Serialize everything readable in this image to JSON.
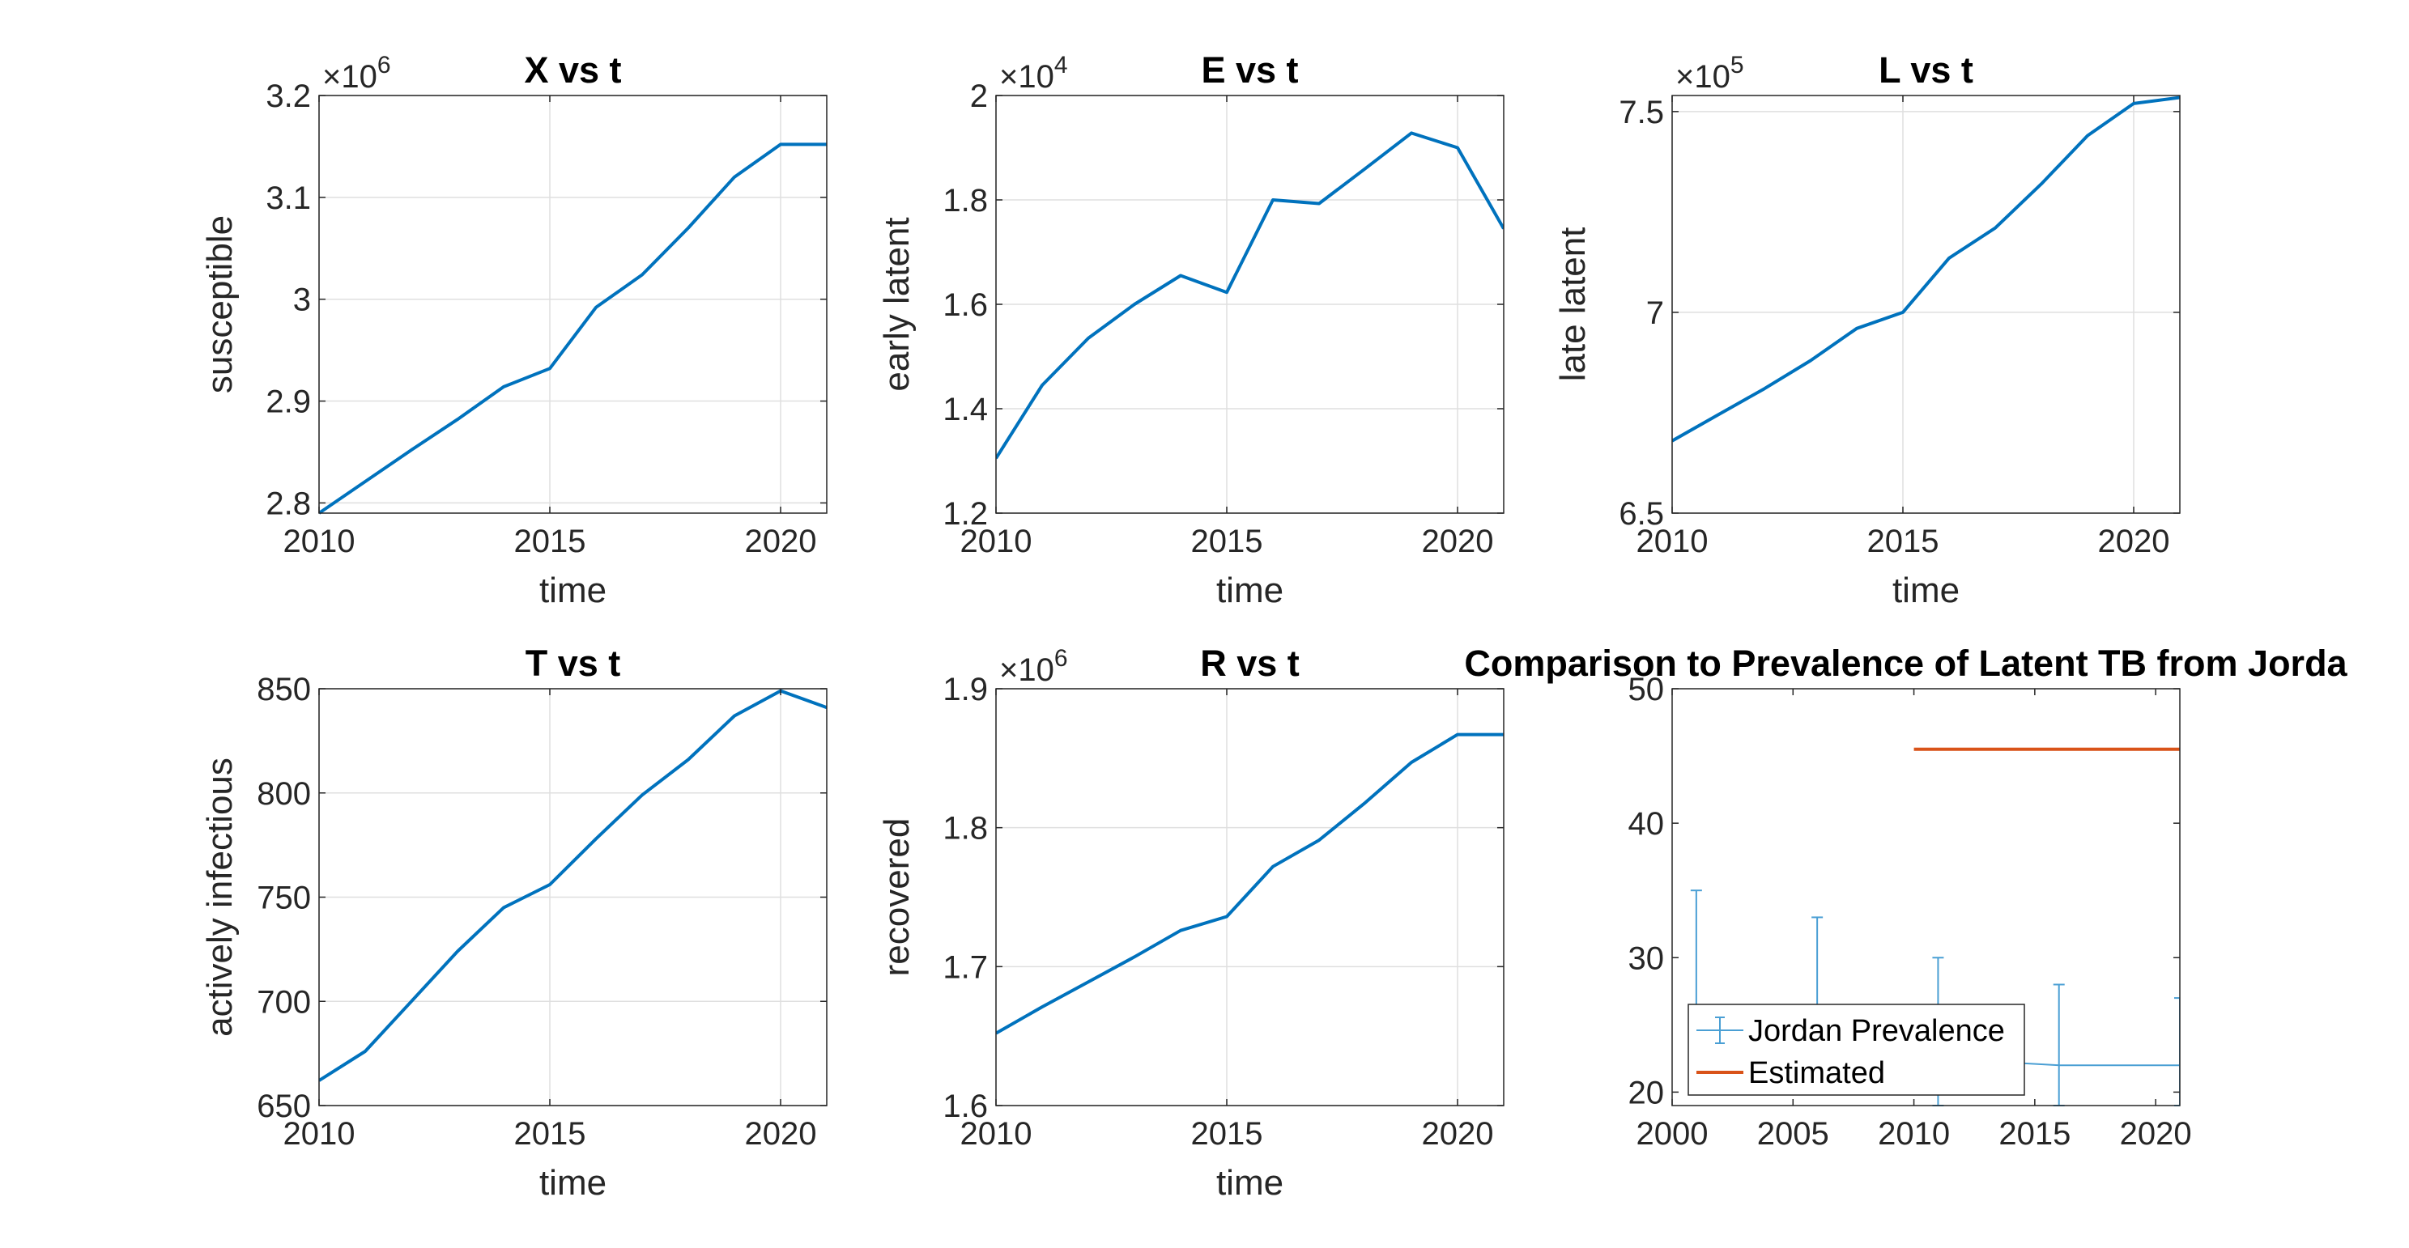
{
  "chart_data": [
    {
      "type": "line",
      "title": "X vs t",
      "xlabel": "time",
      "ylabel": "susceptible",
      "exponent": "6",
      "xlim": [
        2010,
        2021
      ],
      "ylim": [
        2.79,
        3.2
      ],
      "xticks": [
        2010,
        2015,
        2020
      ],
      "xtick_labels": [
        "2010",
        "2015",
        "2020"
      ],
      "yticks": [
        2.8,
        2.9,
        3.0,
        3.1,
        3.2
      ],
      "ytick_labels": [
        "2.8",
        "2.9",
        "3",
        "3.1",
        "3.2"
      ],
      "grid": true,
      "series": [
        {
          "color": "#0072bd",
          "x": [
            2010,
            2011,
            2012,
            2013,
            2014,
            2015,
            2016,
            2017,
            2018,
            2019,
            2020,
            2021
          ],
          "y": [
            2.79,
            2.821,
            2.852,
            2.882,
            2.914,
            2.932,
            2.992,
            3.024,
            3.07,
            3.12,
            3.152,
            3.152
          ]
        }
      ]
    },
    {
      "type": "line",
      "title": "E vs t",
      "xlabel": "time",
      "ylabel": "early latent",
      "exponent": "4",
      "xlim": [
        2010,
        2021
      ],
      "ylim": [
        1.2,
        2.0
      ],
      "xticks": [
        2010,
        2015,
        2020
      ],
      "xtick_labels": [
        "2010",
        "2015",
        "2020"
      ],
      "yticks": [
        1.2,
        1.4,
        1.6,
        1.8,
        2.0
      ],
      "ytick_labels": [
        "1.2",
        "1.4",
        "1.6",
        "1.8",
        "2"
      ],
      "grid": true,
      "series": [
        {
          "color": "#0072bd",
          "x": [
            2010,
            2011,
            2012,
            2013,
            2014,
            2015,
            2016,
            2017,
            2018,
            2019,
            2020,
            2021
          ],
          "y": [
            1.305,
            1.445,
            1.535,
            1.6,
            1.655,
            1.623,
            1.8,
            1.793,
            1.86,
            1.928,
            1.9,
            1.745
          ]
        }
      ]
    },
    {
      "type": "line",
      "title": "L vs t",
      "xlabel": "time",
      "ylabel": "late latent",
      "exponent": "5",
      "xlim": [
        2010,
        2021
      ],
      "ylim": [
        6.5,
        7.54
      ],
      "xticks": [
        2010,
        2015,
        2020
      ],
      "xtick_labels": [
        "2010",
        "2015",
        "2020"
      ],
      "yticks": [
        6.5,
        7.0,
        7.5
      ],
      "ytick_labels": [
        "6.5",
        "7",
        "7.5"
      ],
      "grid": true,
      "series": [
        {
          "color": "#0072bd",
          "x": [
            2010,
            2011,
            2012,
            2013,
            2014,
            2015,
            2016,
            2017,
            2018,
            2019,
            2020,
            2021
          ],
          "y": [
            6.68,
            6.745,
            6.81,
            6.88,
            6.96,
            7.0,
            7.135,
            7.21,
            7.32,
            7.44,
            7.52,
            7.535
          ]
        }
      ]
    },
    {
      "type": "line",
      "title": "T vs t",
      "xlabel": "time",
      "ylabel": "actively infectious",
      "exponent": "",
      "xlim": [
        2010,
        2021
      ],
      "ylim": [
        650,
        850
      ],
      "xticks": [
        2010,
        2015,
        2020
      ],
      "xtick_labels": [
        "2010",
        "2015",
        "2020"
      ],
      "yticks": [
        650,
        700,
        750,
        800,
        850
      ],
      "ytick_labels": [
        "650",
        "700",
        "750",
        "800",
        "850"
      ],
      "grid": true,
      "series": [
        {
          "color": "#0072bd",
          "x": [
            2010,
            2011,
            2012,
            2013,
            2014,
            2015,
            2016,
            2017,
            2018,
            2019,
            2020,
            2021
          ],
          "y": [
            662,
            676,
            700,
            724,
            745,
            756,
            778,
            799,
            816,
            837,
            849,
            841
          ]
        }
      ]
    },
    {
      "type": "line",
      "title": "R vs t",
      "xlabel": "time",
      "ylabel": "recovered",
      "exponent": "6",
      "xlim": [
        2010,
        2021
      ],
      "ylim": [
        1.6,
        1.9
      ],
      "xticks": [
        2010,
        2015,
        2020
      ],
      "xtick_labels": [
        "2010",
        "2015",
        "2020"
      ],
      "yticks": [
        1.6,
        1.7,
        1.8,
        1.9
      ],
      "ytick_labels": [
        "1.6",
        "1.7",
        "1.8",
        "1.9"
      ],
      "grid": true,
      "series": [
        {
          "color": "#0072bd",
          "x": [
            2010,
            2011,
            2012,
            2013,
            2014,
            2015,
            2016,
            2017,
            2018,
            2019,
            2020,
            2021
          ],
          "y": [
            1.652,
            1.671,
            1.689,
            1.707,
            1.726,
            1.736,
            1.772,
            1.791,
            1.818,
            1.847,
            1.867,
            1.867
          ]
        }
      ]
    },
    {
      "type": "line",
      "title": "Comparison to Prevalence of Latent TB from Jorda",
      "xlabel": "",
      "ylabel": "",
      "exponent": "",
      "xlim": [
        2000,
        2021
      ],
      "ylim": [
        19,
        50
      ],
      "xticks": [
        2000,
        2005,
        2010,
        2015,
        2020
      ],
      "xtick_labels": [
        "2000",
        "2005",
        "2010",
        "2015",
        "2020"
      ],
      "yticks": [
        20,
        30,
        40,
        50
      ],
      "ytick_labels": [
        "20",
        "30",
        "40",
        "50"
      ],
      "grid": false,
      "legend_placement": "bottom-left",
      "series": [
        {
          "name": "Jordan Prevalence",
          "color": "#4a9fd4",
          "thin": true,
          "x": [
            2001,
            2006,
            2011,
            2016,
            2021
          ],
          "y": [
            24.0,
            22.8,
            22.5,
            22.0,
            22.0
          ],
          "err_low": [
            20.0,
            20.0,
            19.0,
            19.0,
            19.0
          ],
          "err_high": [
            35.0,
            33.0,
            30.0,
            28.0,
            27.0
          ]
        },
        {
          "name": "Estimated",
          "color": "#d95319",
          "x": [
            2010,
            2021
          ],
          "y": [
            45.5,
            45.5
          ]
        }
      ]
    }
  ]
}
